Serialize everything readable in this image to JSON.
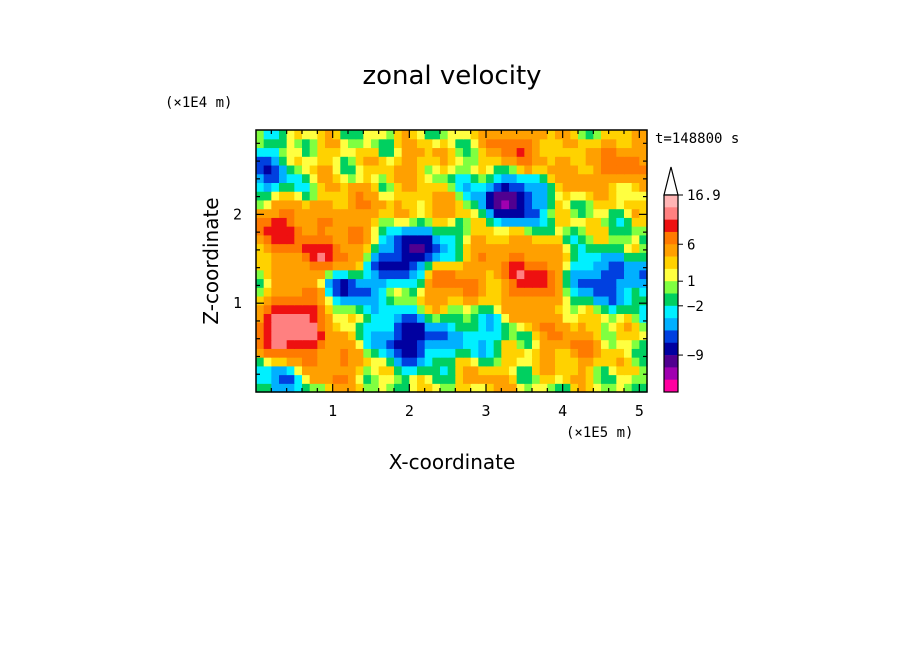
{
  "chart_data": {
    "type": "heatmap",
    "title": "zonal velocity",
    "xlabel": "X-coordinate",
    "ylabel": "Z-coordinate",
    "x_unit": "(×1E5 m)",
    "y_unit": "(×1E4 m)",
    "time_label": "t=148800 s",
    "xlim": [
      0,
      5.1
    ],
    "ylim": [
      0,
      2.95
    ],
    "x_ticks": [
      "1",
      "2",
      "3",
      "4",
      "5"
    ],
    "y_ticks": [
      "1",
      "2"
    ],
    "colorbar": {
      "labels": [
        "16.9",
        "6",
        "1",
        "−2",
        "−9"
      ],
      "colors_top_to_bottom": [
        "#ffb4b4",
        "#ff8080",
        "#ee1010",
        "#ff7a00",
        "#ffa000",
        "#ffd200",
        "#ffff40",
        "#80ff40",
        "#00d060",
        "#00f0ff",
        "#00b0ff",
        "#0040e0",
        "#0000a0",
        "#500090",
        "#a000b0",
        "#ff00a0"
      ],
      "extend_top": true
    },
    "field": {
      "nx": 51,
      "nz": 30,
      "features": [
        {
          "x": 0.4,
          "z": 0.65,
          "u": 10
        },
        {
          "x": 0.7,
          "z": 1.0,
          "u": 6
        },
        {
          "x": 1.1,
          "z": 1.2,
          "u": -8
        },
        {
          "x": 0.9,
          "z": 1.5,
          "u": 7
        },
        {
          "x": 0.3,
          "z": 1.85,
          "u": 6
        },
        {
          "x": 0.6,
          "z": 2.6,
          "u": 2
        },
        {
          "x": 0.2,
          "z": 2.5,
          "u": -5
        },
        {
          "x": 1.5,
          "z": 1.55,
          "u": 4
        },
        {
          "x": 1.8,
          "z": 1.5,
          "u": -8
        },
        {
          "x": 2.3,
          "z": 1.7,
          "u": -6
        },
        {
          "x": 2.0,
          "z": 0.6,
          "u": -7
        },
        {
          "x": 2.5,
          "z": 1.25,
          "u": 5
        },
        {
          "x": 2.2,
          "z": 2.5,
          "u": 6
        },
        {
          "x": 2.4,
          "z": 2.0,
          "u": 4
        },
        {
          "x": 2.3,
          "z": 2.45,
          "u": -5
        },
        {
          "x": 3.3,
          "z": 2.15,
          "u": -9
        },
        {
          "x": 3.6,
          "z": 1.3,
          "u": 7
        },
        {
          "x": 3.1,
          "z": 1.7,
          "u": 3
        },
        {
          "x": 3.4,
          "z": 2.75,
          "u": 5
        },
        {
          "x": 4.2,
          "z": 2.4,
          "u": 2
        },
        {
          "x": 4.8,
          "z": 2.6,
          "u": 4
        },
        {
          "x": 4.4,
          "z": 1.25,
          "u": -5
        },
        {
          "x": 5.0,
          "z": 1.3,
          "u": -3
        },
        {
          "x": 4.2,
          "z": 0.5,
          "u": 3
        },
        {
          "x": 3.8,
          "z": 0.8,
          "u": 2
        },
        {
          "x": 3.0,
          "z": 0.2,
          "u": 2
        },
        {
          "x": 2.9,
          "z": 0.6,
          "u": -3
        },
        {
          "x": 0.3,
          "z": 0.15,
          "u": -4
        },
        {
          "x": 1.0,
          "z": 0.3,
          "u": 4
        },
        {
          "x": 1.3,
          "z": 2.05,
          "u": 3
        }
      ],
      "background": 0.5
    }
  }
}
